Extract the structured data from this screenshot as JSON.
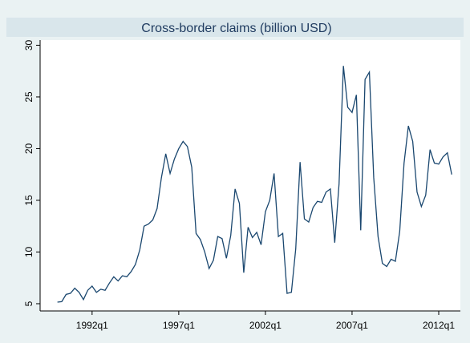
{
  "chart_data": {
    "type": "line",
    "title": "Cross-border claims (billion USD)",
    "x": [
      "1990q1",
      "1990q2",
      "1990q3",
      "1990q4",
      "1991q1",
      "1991q2",
      "1991q3",
      "1991q4",
      "1992q1",
      "1992q2",
      "1992q3",
      "1992q4",
      "1993q1",
      "1993q2",
      "1993q3",
      "1993q4",
      "1994q1",
      "1994q2",
      "1994q3",
      "1994q4",
      "1995q1",
      "1995q2",
      "1995q3",
      "1995q4",
      "1996q1",
      "1996q2",
      "1996q3",
      "1996q4",
      "1997q1",
      "1997q2",
      "1997q3",
      "1997q4",
      "1998q1",
      "1998q2",
      "1998q3",
      "1998q4",
      "1999q1",
      "1999q2",
      "1999q3",
      "1999q4",
      "2000q1",
      "2000q2",
      "2000q3",
      "2000q4",
      "2001q1",
      "2001q2",
      "2001q3",
      "2001q4",
      "2002q1",
      "2002q2",
      "2002q3",
      "2002q4",
      "2003q1",
      "2003q2",
      "2003q3",
      "2003q4",
      "2004q1",
      "2004q2",
      "2004q3",
      "2004q4",
      "2005q1",
      "2005q2",
      "2005q3",
      "2005q4",
      "2006q1",
      "2006q2",
      "2006q3",
      "2006q4",
      "2007q1",
      "2007q2",
      "2007q3",
      "2007q4",
      "2008q1",
      "2008q2",
      "2008q3",
      "2008q4",
      "2009q1",
      "2009q2",
      "2009q3",
      "2009q4",
      "2010q1",
      "2010q2",
      "2010q3",
      "2010q4",
      "2011q1",
      "2011q2",
      "2011q3",
      "2011q4",
      "2012q1",
      "2012q2",
      "2012q3",
      "2012q4"
    ],
    "series": [
      {
        "color": "#1a476f",
        "values": [
          5.15,
          5.2,
          5.9,
          6.0,
          6.5,
          6.1,
          5.4,
          6.3,
          6.7,
          6.1,
          6.4,
          6.3,
          7.0,
          7.6,
          7.2,
          7.7,
          7.6,
          8.1,
          8.8,
          10.2,
          12.5,
          12.7,
          13.1,
          14.2,
          17.2,
          19.5,
          17.6,
          19.0,
          20.0,
          20.7,
          20.2,
          18.2,
          11.8,
          11.2,
          10.0,
          8.4,
          9.2,
          11.5,
          11.3,
          9.4,
          11.6,
          16.1,
          14.7,
          8.0,
          12.4,
          11.4,
          11.9,
          10.7,
          13.9,
          15.0,
          17.6,
          11.5,
          11.8,
          6.0,
          6.1,
          10.3,
          18.7,
          13.2,
          12.9,
          14.3,
          14.9,
          14.8,
          15.8,
          16.1,
          10.9,
          16.6,
          28.0,
          24.0,
          23.5,
          25.2,
          12.1,
          26.7,
          27.4,
          17.2,
          11.5,
          8.9,
          8.6,
          9.3,
          9.1,
          12.0,
          18.6,
          22.2,
          20.7,
          15.8,
          14.4,
          15.5,
          19.9,
          18.6,
          18.5,
          19.2,
          19.6,
          17.5
        ]
      }
    ],
    "xlim": [
      "1989q1",
      "2013q2"
    ],
    "xticks": [
      "1992q1",
      "1997q1",
      "2002q1",
      "2007q1",
      "2012q1"
    ],
    "ylim": [
      4.3,
      30.5
    ],
    "yticks": [
      5,
      10,
      15,
      20,
      25,
      30
    ],
    "grid": false
  }
}
